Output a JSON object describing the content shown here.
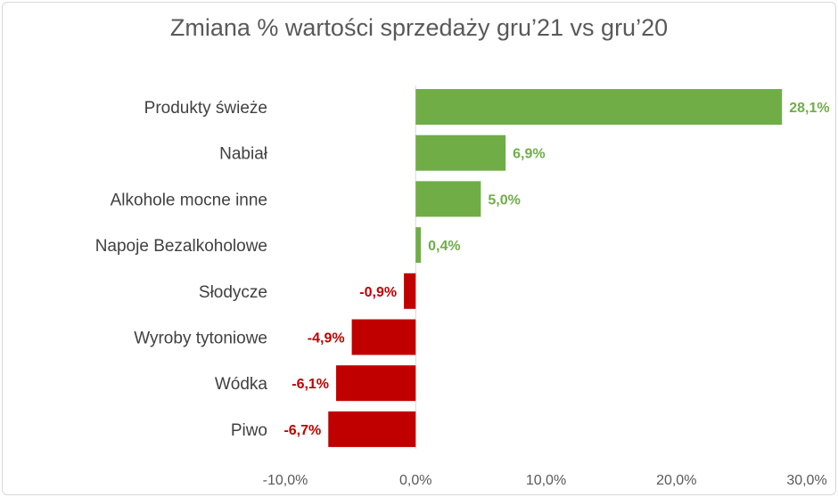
{
  "chart_data": {
    "type": "bar",
    "orientation": "horizontal",
    "title": "Zmiana % wartości sprzedaży gru’21 vs gru’20",
    "categories": [
      "Produkty świeże",
      "Nabiał",
      "Alkohole mocne inne",
      "Napoje Bezalkoholowe",
      "Słodycze",
      "Wyroby tytoniowe",
      "Wódka",
      "Piwo"
    ],
    "values": [
      28.1,
      6.9,
      5.0,
      0.4,
      -0.9,
      -4.9,
      -6.1,
      -6.7
    ],
    "data_labels": [
      "28,1%",
      "6,9%",
      "5,0%",
      "0,4%",
      "-0,9%",
      "-4,9%",
      "-6,1%",
      "-6,7%"
    ],
    "xlim": [
      -10,
      30
    ],
    "x_ticks": [
      -10,
      0,
      10,
      20,
      30
    ],
    "x_tick_labels": [
      "-10,0%",
      "0,0%",
      "10,0%",
      "20,0%",
      "30,0%"
    ],
    "grid": false,
    "legend": "none",
    "colors": {
      "positive": "#70ad47",
      "negative": "#c00000"
    }
  }
}
